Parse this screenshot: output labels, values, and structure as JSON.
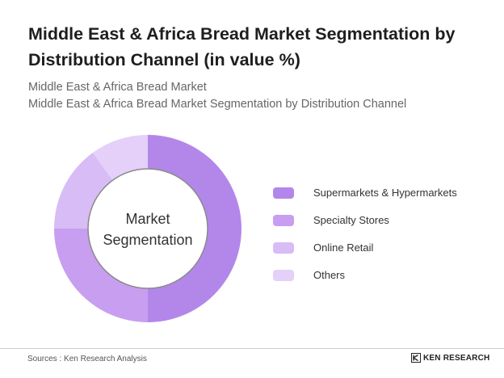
{
  "header": {
    "title": "Middle East & Africa Bread Market Segmentation by Distribution Channel (in value %)",
    "subtitle_line1": "Middle East & Africa Bread Market",
    "subtitle_line2": "Middle East & Africa Bread Market Segmentation by Distribution Channel"
  },
  "chart_data": {
    "type": "pie",
    "donut": true,
    "center_label": [
      "Market",
      "Segmentation"
    ],
    "categories": [
      "Supermarkets & Hypermarkets",
      "Specialty Stores",
      "Online Retail",
      "Others"
    ],
    "values": [
      50,
      25,
      15,
      10
    ],
    "colors": [
      "#b387ea",
      "#c79ef0",
      "#d8bcf6",
      "#e4d0f8"
    ],
    "legend_position": "right"
  },
  "footer": {
    "source": "Sources : Ken Research Analysis",
    "brand": "KEN RESEARCH"
  }
}
